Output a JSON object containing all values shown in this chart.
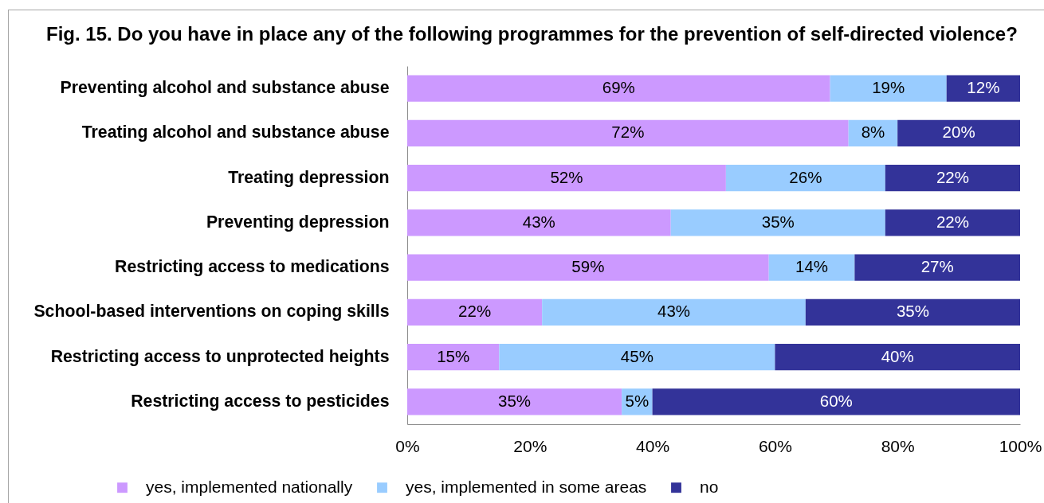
{
  "chart_data": {
    "type": "bar",
    "title": "Fig. 15. Do you have in place any of the following programmes for the prevention of self-directed violence?",
    "orientation": "horizontal",
    "stacked": true,
    "legend": "bottom",
    "categories": [
      "Preventing alcohol and substance abuse",
      "Treating alcohol and substance abuse",
      "Treating depression",
      "Preventing depression",
      "Restricting access to medications",
      "School-based interventions on coping skills",
      "Restricting access to unprotected heights",
      "Restricting access to pesticides"
    ],
    "series": [
      {
        "name": "yes, implemented nationally",
        "color": "#cc99ff",
        "values": [
          69,
          72,
          52,
          43,
          59,
          22,
          15,
          35
        ],
        "value_labels": [
          "69%",
          "72%",
          "52%",
          "43%",
          "59%",
          "22%",
          "15%",
          "35%"
        ]
      },
      {
        "name": "yes, implemented in some areas",
        "color": "#99ccff",
        "values": [
          19,
          8,
          26,
          35,
          14,
          43,
          45,
          5
        ],
        "value_labels": [
          "19%",
          "8%",
          "26%",
          "35%",
          "14%",
          "43%",
          "45%",
          "5%"
        ]
      },
      {
        "name": "no",
        "color": "#333399",
        "values": [
          12,
          20,
          22,
          22,
          27,
          35,
          40,
          60
        ],
        "value_labels": [
          "12%",
          "20%",
          "22%",
          "22%",
          "27%",
          "35%",
          "40%",
          "60%"
        ]
      }
    ],
    "xlim": [
      0,
      100
    ],
    "xticks": [
      {
        "value": 0,
        "label": "0%"
      },
      {
        "value": 20,
        "label": "20%"
      },
      {
        "value": 40,
        "label": "40%"
      },
      {
        "value": 60,
        "label": "60%"
      },
      {
        "value": 80,
        "label": "80%"
      },
      {
        "value": 100,
        "label": "100%"
      }
    ]
  }
}
